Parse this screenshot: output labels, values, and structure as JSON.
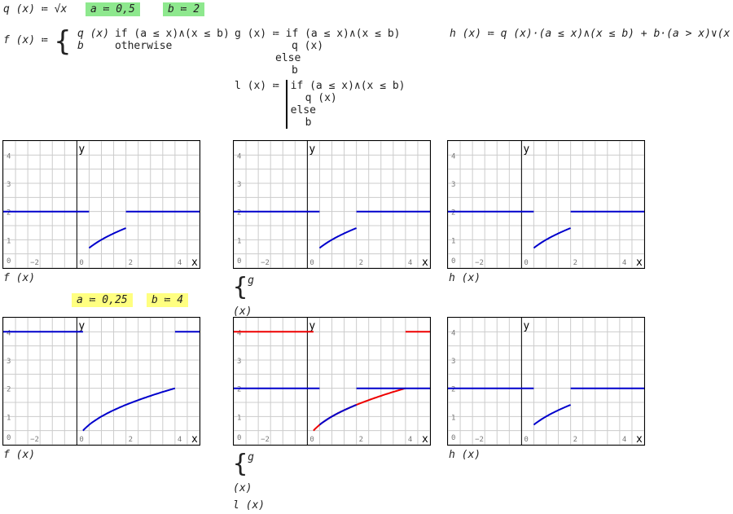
{
  "defs": {
    "q_def": "q (x) ≔ √x",
    "a1": "a ≔ 0,5",
    "b1": "b ≔ 2",
    "f_lhs": "f (x) ≔",
    "f_case1_val": "q (x)",
    "f_case1_cond": "if   (a ≤ x)∧(x ≤ b)",
    "f_case2_val": "b",
    "f_case2_cond": "otherwise",
    "g_line1": "g (x) ≔ if  (a ≤ x)∧(x ≤ b)",
    "g_line2": "q (x)",
    "g_line3": "else",
    "g_line4": "b",
    "l_lhs": "l (x) ≔",
    "l_line1": "if  (a ≤ x)∧(x ≤ b)",
    "l_line2": "q (x)",
    "l_line3": "else",
    "l_line4": "b",
    "h_def": "h (x) ≔ q (x)·(a ≤ x)∧(x ≤ b) + b·(a > x)∨(x > b)",
    "a2": "a ≔ 0,25",
    "b2": "b ≔ 4"
  },
  "highlight_colors": {
    "green": "#8ee88e",
    "yellow": "#ffff80"
  },
  "captions": {
    "f": "f (x)",
    "g": "g (x)",
    "l": "l (x)",
    "h": "h (x)"
  },
  "axis": {
    "xlabel": "x",
    "ylabel": "y",
    "xticks": [
      "−2",
      "0",
      "2",
      "4"
    ],
    "yticks": [
      "0",
      "1",
      "2",
      "3",
      "4"
    ],
    "xlim": [
      -3,
      5
    ],
    "ylim": [
      0,
      4.5
    ]
  },
  "chart_data": [
    {
      "type": "line",
      "id": "f-top",
      "a": 0.5,
      "b": 2,
      "series": [
        {
          "fn": "f",
          "color": "#0000cc"
        }
      ]
    },
    {
      "type": "line",
      "id": "gl-top",
      "a": 0.5,
      "b": 2,
      "series": [
        {
          "fn": "g",
          "color": "#0000cc"
        }
      ]
    },
    {
      "type": "line",
      "id": "h-top",
      "a": 0.5,
      "b": 2,
      "series": [
        {
          "fn": "h",
          "color": "#0000cc"
        }
      ]
    },
    {
      "type": "line",
      "id": "f-bot",
      "a": 0.25,
      "b": 4,
      "series": [
        {
          "fn": "f",
          "color": "#0000cc"
        }
      ]
    },
    {
      "type": "line",
      "id": "gl-bot",
      "a_g": 0.5,
      "b_g": 2,
      "a_l": 0.25,
      "b_l": 4,
      "series": [
        {
          "fn": "l",
          "color": "#ee0000"
        },
        {
          "fn": "g",
          "color": "#0000cc"
        }
      ]
    },
    {
      "type": "line",
      "id": "h-bot",
      "a": 0.5,
      "b": 2,
      "series": [
        {
          "fn": "h",
          "color": "#0000cc"
        }
      ]
    }
  ]
}
